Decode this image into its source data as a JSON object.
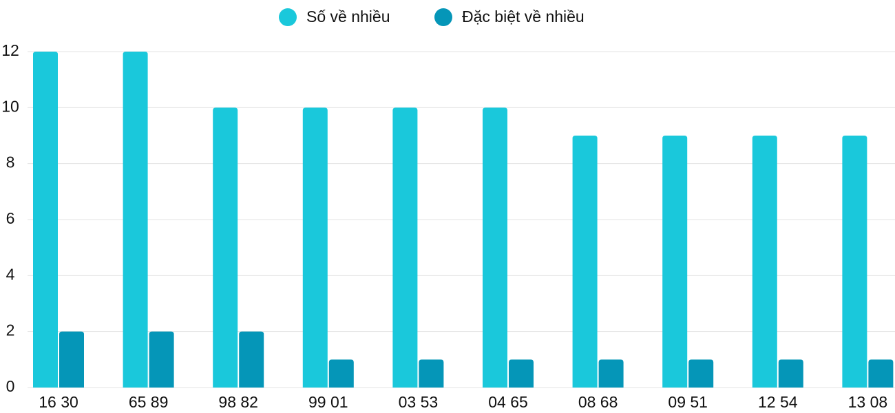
{
  "chart_data": {
    "type": "bar",
    "categories": [
      "16 30",
      "65 89",
      "98 82",
      "99 01",
      "03 53",
      "04 65",
      "08 68",
      "09 51",
      "12 54",
      "13 08"
    ],
    "series": [
      {
        "name": "Số về nhiều",
        "color": "#1ac8db",
        "values": [
          12,
          12,
          10,
          10,
          10,
          10,
          9,
          9,
          9,
          9
        ]
      },
      {
        "name": "Đặc biệt về nhiều",
        "color": "#0596b8",
        "values": [
          2,
          2,
          2,
          1,
          1,
          1,
          1,
          1,
          1,
          1
        ]
      }
    ],
    "ylim": [
      0,
      12
    ],
    "yticks": [
      0,
      2,
      4,
      6,
      8,
      10,
      12
    ],
    "grid": true,
    "legend": "top"
  }
}
